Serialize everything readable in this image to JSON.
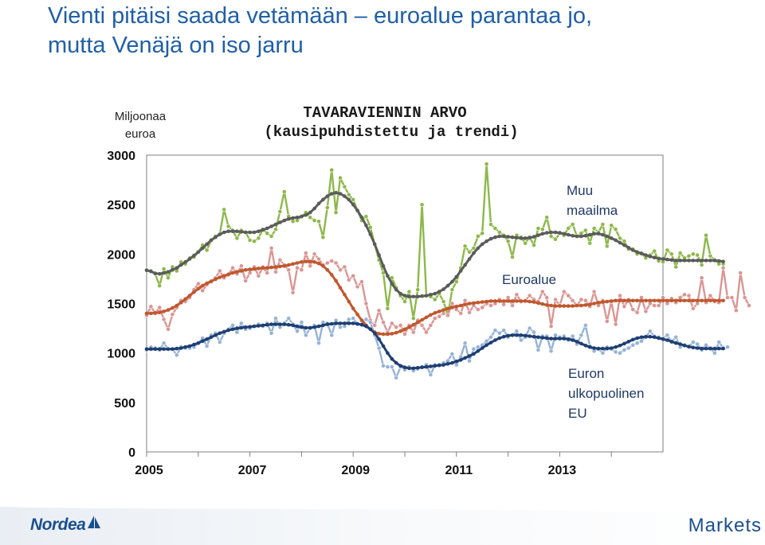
{
  "slide": {
    "title_line1": "Vienti pitäisi saada vetämään – euroalue parantaa jo,",
    "title_line2": "mutta Venäjä on iso jarru"
  },
  "footer": {
    "brand_left": "Nordea",
    "brand_left_icon": "nordea-sail-logo",
    "brand_right": "Markets"
  },
  "colors": {
    "muu_maailma_raw": "#8db84a",
    "muu_maailma_trend": "#5b5b5b",
    "euroalue_raw": "#d99694",
    "euroalue_trend": "#c0582e",
    "euron_ulkop_raw": "#95b3d7",
    "euron_ulkop_trend": "#1f3f73",
    "title": "#1f5fa8",
    "label_text": "#1f3864"
  },
  "chart_data": {
    "type": "line",
    "title": "TAVARAVIENNIN ARVO",
    "subtitle": "(kausipuhdistettu ja trendi)",
    "ylabel": "Miljoonaa euroa",
    "ylim": [
      0,
      3000
    ],
    "yticks": [
      0,
      500,
      1000,
      1500,
      2000,
      2500,
      3000
    ],
    "xlim": [
      2005.0,
      2015.0
    ],
    "xticks": [
      2005,
      2007,
      2009,
      2011,
      2013
    ],
    "grid": false,
    "frequency": "monthly",
    "x_start": 2005.0,
    "series": [
      {
        "name": "Muu maailma",
        "label_lines": [
          "Muu",
          "maailma"
        ],
        "kind": "raw",
        "color_key": "muu_maailma_raw",
        "values": [
          1840,
          1830,
          1800,
          1680,
          1850,
          1760,
          1870,
          1830,
          1920,
          1900,
          1960,
          1970,
          2020,
          2090,
          2040,
          2140,
          2180,
          2200,
          2450,
          2280,
          2240,
          2160,
          2240,
          2220,
          2140,
          2130,
          2160,
          2250,
          2210,
          2180,
          2250,
          2430,
          2630,
          2380,
          2330,
          2340,
          2380,
          2420,
          2370,
          2340,
          2330,
          2170,
          2470,
          2850,
          2420,
          2770,
          2680,
          2600,
          2550,
          2440,
          2340,
          2380,
          2270,
          2100,
          1940,
          1810,
          1450,
          1760,
          1660,
          1580,
          1520,
          1620,
          1350,
          1640,
          2500,
          1580,
          1570,
          1540,
          1600,
          1520,
          1380,
          1640,
          1720,
          1860,
          2080,
          2020,
          2060,
          2180,
          2210,
          2910,
          2300,
          2260,
          2220,
          2190,
          2130,
          1970,
          2190,
          2170,
          2110,
          2170,
          2090,
          2260,
          2250,
          2370,
          2180,
          2150,
          2210,
          2190,
          2260,
          2300,
          2180,
          2210,
          2240,
          2110,
          2260,
          2220,
          2300,
          2080,
          2290,
          2250,
          2160,
          2130,
          2050,
          2050,
          2000,
          2010,
          1960,
          1990,
          2030,
          1930,
          1920,
          2040,
          2000,
          1870,
          2010,
          1960,
          1980,
          2000,
          1990,
          1890,
          2190,
          1980,
          1940,
          1900,
          1900
        ]
      },
      {
        "name": "Muu maailma (trendi)",
        "kind": "trend",
        "color_key": "muu_maailma_trend",
        "values": [
          1835,
          1825,
          1805,
          1800,
          1810,
          1820,
          1840,
          1860,
          1890,
          1920,
          1950,
          1985,
          2020,
          2060,
          2100,
          2140,
          2170,
          2200,
          2220,
          2230,
          2230,
          2230,
          2225,
          2220,
          2220,
          2220,
          2230,
          2245,
          2260,
          2280,
          2300,
          2320,
          2340,
          2355,
          2365,
          2370,
          2380,
          2395,
          2420,
          2460,
          2510,
          2550,
          2585,
          2610,
          2620,
          2610,
          2585,
          2550,
          2500,
          2440,
          2370,
          2290,
          2200,
          2100,
          1990,
          1880,
          1780,
          1700,
          1640,
          1600,
          1580,
          1570,
          1570,
          1570,
          1575,
          1580,
          1590,
          1600,
          1620,
          1645,
          1680,
          1720,
          1770,
          1830,
          1890,
          1950,
          2010,
          2060,
          2100,
          2130,
          2155,
          2170,
          2180,
          2180,
          2175,
          2170,
          2165,
          2160,
          2160,
          2165,
          2175,
          2190,
          2205,
          2215,
          2220,
          2220,
          2215,
          2205,
          2195,
          2185,
          2180,
          2180,
          2185,
          2195,
          2205,
          2205,
          2195,
          2180,
          2160,
          2140,
          2115,
          2090,
          2065,
          2040,
          2020,
          2005,
          1990,
          1975,
          1965,
          1955,
          1950,
          1945,
          1940,
          1935,
          1935,
          1935,
          1935,
          1935,
          1935,
          1935,
          1935,
          1935,
          1935,
          1930,
          1925
        ]
      },
      {
        "name": "Euroalue",
        "label_lines": [
          "Euroalue"
        ],
        "kind": "raw",
        "color_key": "euroalue_raw",
        "values": [
          1380,
          1470,
          1400,
          1460,
          1340,
          1240,
          1390,
          1460,
          1530,
          1520,
          1560,
          1640,
          1700,
          1630,
          1690,
          1720,
          1760,
          1830,
          1760,
          1790,
          1860,
          1800,
          1880,
          1730,
          1810,
          1870,
          1780,
          1870,
          1810,
          2060,
          1820,
          1940,
          1890,
          1840,
          1610,
          1860,
          1840,
          2010,
          1880,
          2000,
          1950,
          1890,
          1910,
          1930,
          1910,
          1840,
          1870,
          1740,
          1780,
          1670,
          1720,
          1500,
          1330,
          1280,
          1430,
          1310,
          1210,
          1300,
          1260,
          1280,
          1190,
          1280,
          1210,
          1330,
          1280,
          1210,
          1280,
          1350,
          1370,
          1400,
          1380,
          1500,
          1440,
          1400,
          1530,
          1410,
          1480,
          1440,
          1460,
          1500,
          1480,
          1500,
          1540,
          1490,
          1560,
          1480,
          1590,
          1520,
          1530,
          1580,
          1540,
          1520,
          1620,
          1560,
          1270,
          1540,
          1480,
          1620,
          1580,
          1530,
          1480,
          1540,
          1530,
          1470,
          1620,
          1480,
          1530,
          1320,
          1520,
          1290,
          1580,
          1470,
          1540,
          1440,
          1410,
          1560,
          1420,
          1500,
          1480,
          1480,
          1560,
          1500,
          1550,
          1510,
          1560,
          1590,
          1580,
          1450,
          1500,
          1760,
          1510,
          1580,
          1520,
          1510,
          1860,
          1560,
          1560,
          1430,
          1810,
          1560,
          1480
        ]
      },
      {
        "name": "Euroalue (trendi)",
        "kind": "trend",
        "color_key": "euroalue_trend",
        "values": [
          1400,
          1400,
          1405,
          1410,
          1420,
          1435,
          1455,
          1480,
          1510,
          1545,
          1580,
          1615,
          1650,
          1680,
          1705,
          1725,
          1745,
          1765,
          1780,
          1795,
          1810,
          1820,
          1830,
          1840,
          1845,
          1850,
          1855,
          1860,
          1860,
          1865,
          1870,
          1875,
          1880,
          1890,
          1900,
          1910,
          1920,
          1925,
          1925,
          1920,
          1905,
          1880,
          1840,
          1790,
          1730,
          1660,
          1590,
          1520,
          1450,
          1390,
          1330,
          1280,
          1240,
          1210,
          1195,
          1190,
          1190,
          1195,
          1205,
          1220,
          1240,
          1260,
          1285,
          1310,
          1335,
          1360,
          1385,
          1405,
          1420,
          1435,
          1450,
          1460,
          1470,
          1480,
          1490,
          1500,
          1505,
          1510,
          1515,
          1520,
          1525,
          1525,
          1525,
          1525,
          1525,
          1525,
          1525,
          1525,
          1525,
          1520,
          1515,
          1505,
          1495,
          1485,
          1480,
          1475,
          1475,
          1475,
          1475,
          1475,
          1480,
          1480,
          1485,
          1490,
          1500,
          1510,
          1515,
          1520,
          1525,
          1530,
          1530,
          1530,
          1530,
          1530,
          1530,
          1530,
          1530,
          1530,
          1530,
          1530,
          1530,
          1530,
          1530,
          1530,
          1530,
          1530,
          1530,
          1530,
          1530,
          1530,
          1530,
          1530,
          1530,
          1530,
          1530
        ]
      },
      {
        "name": "Euron ulkopuolinen EU",
        "label_lines": [
          "Euron",
          "ulkopuolinen",
          "EU"
        ],
        "kind": "raw",
        "color_key": "euron_ulkop_raw",
        "values": [
          1030,
          1060,
          1050,
          1030,
          1100,
          1040,
          1040,
          980,
          1060,
          1050,
          1050,
          1060,
          1100,
          1150,
          1070,
          1180,
          1200,
          1110,
          1200,
          1240,
          1280,
          1210,
          1300,
          1240,
          1250,
          1270,
          1290,
          1270,
          1300,
          1200,
          1350,
          1260,
          1300,
          1350,
          1290,
          1220,
          1310,
          1180,
          1250,
          1280,
          1100,
          1310,
          1300,
          1180,
          1330,
          1260,
          1270,
          1340,
          1350,
          1290,
          1290,
          1340,
          1310,
          1180,
          1050,
          870,
          860,
          860,
          750,
          860,
          830,
          860,
          820,
          840,
          860,
          880,
          780,
          880,
          880,
          900,
          920,
          990,
          880,
          960,
          1100,
          920,
          1040,
          1060,
          1080,
          1120,
          1160,
          1230,
          1200,
          1230,
          1160,
          1180,
          1220,
          1130,
          1160,
          1250,
          1210,
          1030,
          1170,
          1170,
          1020,
          1180,
          1160,
          1170,
          1130,
          1170,
          1090,
          1180,
          1280,
          1070,
          1020,
          1040,
          1000,
          1060,
          1040,
          1010,
          1000,
          1030,
          1050,
          1080,
          1100,
          1120,
          1160,
          1220,
          1170,
          1160,
          1150,
          1180,
          1110,
          1160,
          1060,
          1080,
          1060,
          1110,
          1090,
          1030,
          1080,
          1050,
          1000,
          1110,
          1050,
          1060
        ]
      },
      {
        "name": "Euron ulkopuolinen EU (trendi)",
        "kind": "trend",
        "color_key": "euron_ulkop_trend",
        "values": [
          1040,
          1040,
          1040,
          1040,
          1040,
          1040,
          1040,
          1045,
          1050,
          1060,
          1070,
          1085,
          1100,
          1120,
          1140,
          1160,
          1180,
          1200,
          1215,
          1230,
          1240,
          1250,
          1255,
          1260,
          1265,
          1270,
          1275,
          1280,
          1285,
          1290,
          1290,
          1290,
          1290,
          1285,
          1280,
          1270,
          1260,
          1255,
          1255,
          1260,
          1270,
          1280,
          1290,
          1295,
          1300,
          1300,
          1300,
          1300,
          1300,
          1295,
          1285,
          1270,
          1240,
          1200,
          1140,
          1070,
          1000,
          940,
          900,
          870,
          855,
          845,
          845,
          850,
          855,
          860,
          865,
          870,
          875,
          880,
          890,
          900,
          915,
          930,
          950,
          970,
          990,
          1020,
          1050,
          1080,
          1105,
          1130,
          1150,
          1165,
          1175,
          1180,
          1180,
          1180,
          1175,
          1170,
          1165,
          1160,
          1155,
          1150,
          1145,
          1145,
          1145,
          1145,
          1140,
          1130,
          1115,
          1095,
          1075,
          1060,
          1050,
          1045,
          1045,
          1045,
          1050,
          1060,
          1075,
          1095,
          1115,
          1135,
          1150,
          1160,
          1165,
          1165,
          1160,
          1150,
          1140,
          1130,
          1115,
          1100,
          1090,
          1075,
          1065,
          1055,
          1050,
          1045,
          1045,
          1045,
          1045,
          1045,
          1045
        ]
      }
    ]
  }
}
